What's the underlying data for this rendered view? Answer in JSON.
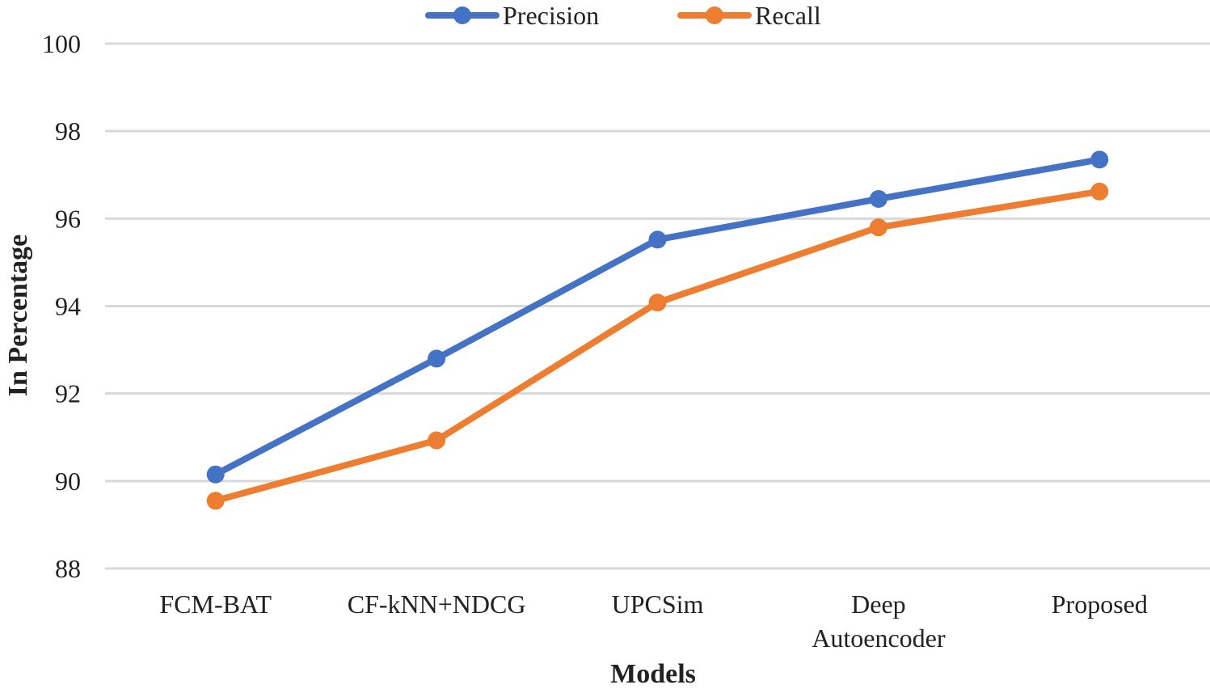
{
  "chart_data": {
    "type": "line",
    "title": "",
    "xlabel": "Models",
    "ylabel": "In Percentage",
    "categories": [
      [
        "FCM-BAT"
      ],
      [
        "CF-kNN+NDCG"
      ],
      [
        "UPCSim"
      ],
      [
        "Deep",
        "Autoencoder"
      ],
      [
        "Proposed"
      ]
    ],
    "series": [
      {
        "name": "Precision",
        "color": "#4472C4",
        "values": [
          90.15,
          92.8,
          95.52,
          96.45,
          97.35
        ]
      },
      {
        "name": "Recall",
        "color": "#ED7D31",
        "values": [
          89.55,
          90.93,
          94.08,
          95.8,
          96.62
        ]
      }
    ],
    "ylim": [
      88,
      100
    ],
    "yticks": [
      88,
      90,
      92,
      94,
      96,
      98,
      100
    ],
    "grid": true,
    "legend": "top-center"
  }
}
